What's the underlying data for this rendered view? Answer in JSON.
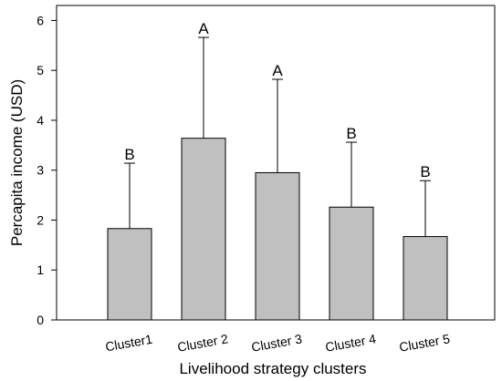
{
  "chart_data": {
    "type": "bar",
    "categories": [
      "Cluster1",
      "Cluster 2",
      "Cluster 3",
      "Cluster 4",
      "Cluster 5"
    ],
    "values": [
      1.83,
      3.64,
      2.95,
      2.26,
      1.67
    ],
    "error_upper": [
      3.14,
      5.66,
      4.82,
      3.56,
      2.79
    ],
    "significance_letters": [
      "B",
      "A",
      "A",
      "B",
      "B"
    ],
    "xlabel": "Livelihood strategy clusters",
    "ylabel": "Percapita income (USD)",
    "ylim": [
      0,
      6.3
    ],
    "yticks": [
      0,
      1,
      2,
      3,
      4,
      5,
      6
    ],
    "grid": false,
    "bar_color": "#c0c0c0",
    "edge_color": "#000000"
  }
}
